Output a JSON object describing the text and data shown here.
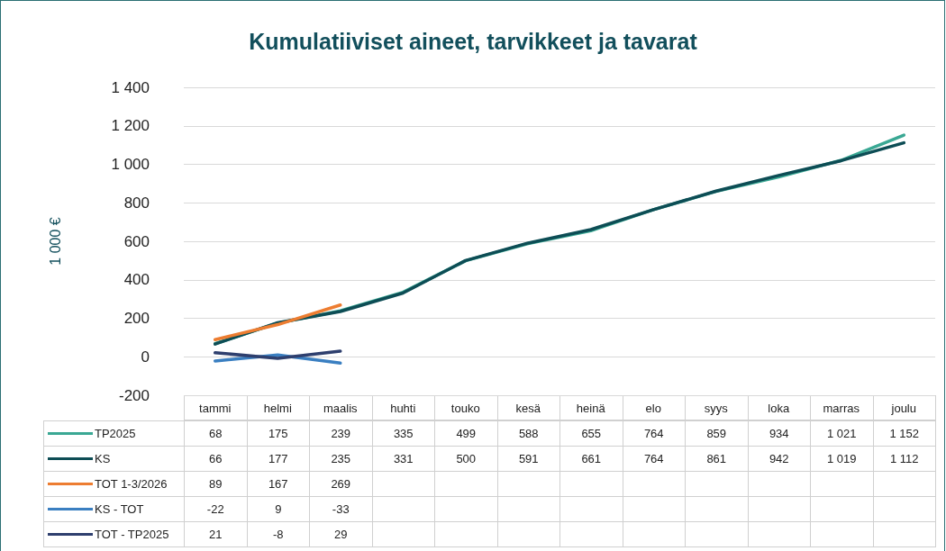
{
  "chart_data": {
    "type": "line",
    "title": "Kumulatiiviset aineet, tarvikkeet ja tavarat",
    "ylabel": "1 000 €",
    "categories": [
      "tammi",
      "helmi",
      "maalis",
      "huhti",
      "touko",
      "kesä",
      "heinä",
      "elo",
      "syys",
      "loka",
      "marras",
      "joulu"
    ],
    "series": [
      {
        "name": "TP2025",
        "color": "#3aa894",
        "values": [
          68,
          175,
          239,
          335,
          499,
          588,
          655,
          764,
          859,
          934,
          1021,
          1152
        ]
      },
      {
        "name": "KS",
        "color": "#0d4d55",
        "values": [
          66,
          177,
          235,
          331,
          500,
          591,
          661,
          764,
          861,
          942,
          1019,
          1112
        ]
      },
      {
        "name": "TOT 1-3/2026",
        "color": "#ed7d31",
        "values": [
          89,
          167,
          269,
          null,
          null,
          null,
          null,
          null,
          null,
          null,
          null,
          null
        ]
      },
      {
        "name": "KS - TOT",
        "color": "#3a7fc1",
        "values": [
          -22,
          9,
          -33,
          null,
          null,
          null,
          null,
          null,
          null,
          null,
          null,
          null
        ]
      },
      {
        "name": "TOT - TP2025",
        "color": "#2e3f6e",
        "values": [
          21,
          -8,
          29,
          null,
          null,
          null,
          null,
          null,
          null,
          null,
          null,
          null
        ]
      }
    ],
    "ylim": [
      -200,
      1400
    ],
    "yticks": [
      -200,
      0,
      200,
      400,
      600,
      800,
      1000,
      1200,
      1400
    ],
    "grid": "y",
    "legend": "bottom",
    "data_labels": true,
    "line_style": "solid",
    "marker": "none"
  }
}
